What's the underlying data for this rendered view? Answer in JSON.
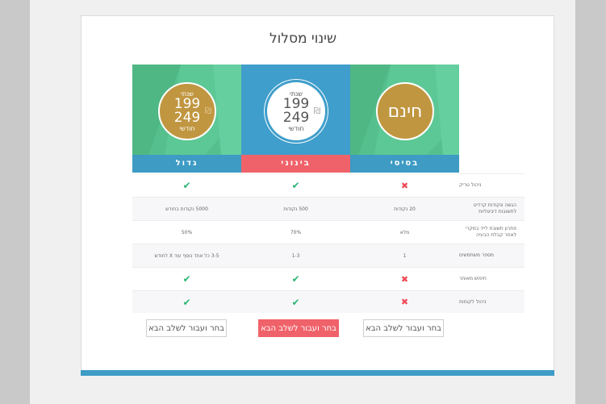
{
  "title": "שינוי מסלול",
  "plans": {
    "big": {
      "name": "גדול",
      "label_top": "שנתי",
      "price_year": "199",
      "price_month": "249",
      "label_bottom": "חודשי",
      "currency": "₪"
    },
    "mid": {
      "name": "בינוני",
      "label_top": "שנתי",
      "price_year": "199",
      "price_month": "249",
      "label_bottom": "חודשי",
      "currency": "₪"
    },
    "basic": {
      "name": "בסיסי",
      "free_label": "חינם"
    }
  },
  "features": [
    {
      "label": "ניהול טריק",
      "big": "check",
      "mid": "check",
      "basic": "cross"
    },
    {
      "label": "הגשה ונקודות קרדיט לתשובות דיגיטליות",
      "big": "5000 נקודות בחודש",
      "mid": "500 נקודות",
      "basic": "20 נקודות"
    },
    {
      "label": "פתרון תשובת לייד במקרי לאחר קבלת הבעיה",
      "big": "50%",
      "mid": "70%",
      "basic": "מלא"
    },
    {
      "label": "מספר משתמשים",
      "big": "3-5 כל אחד נוסף עוד X לחודש",
      "mid": "1-3",
      "basic": "1"
    },
    {
      "label": "חיפוש מאוחר",
      "big": "check",
      "mid": "check",
      "basic": "cross"
    },
    {
      "label": "ניהול לקוחות",
      "big": "check",
      "mid": "check",
      "basic": "cross"
    }
  ],
  "buttons": {
    "big": "בחר ועבור לשלב הבא",
    "mid": "בחר ועבור לשלב הבא",
    "basic": "בחר ועבור לשלב הבא"
  },
  "colors": {
    "green": "#55c08d",
    "blue": "#3f9ecb",
    "red": "#f0626a",
    "gold": "#c09640",
    "check": "#2bb673",
    "cross": "#ef4a55"
  },
  "icons": {
    "check": "check-icon",
    "cross": "cross-icon"
  }
}
